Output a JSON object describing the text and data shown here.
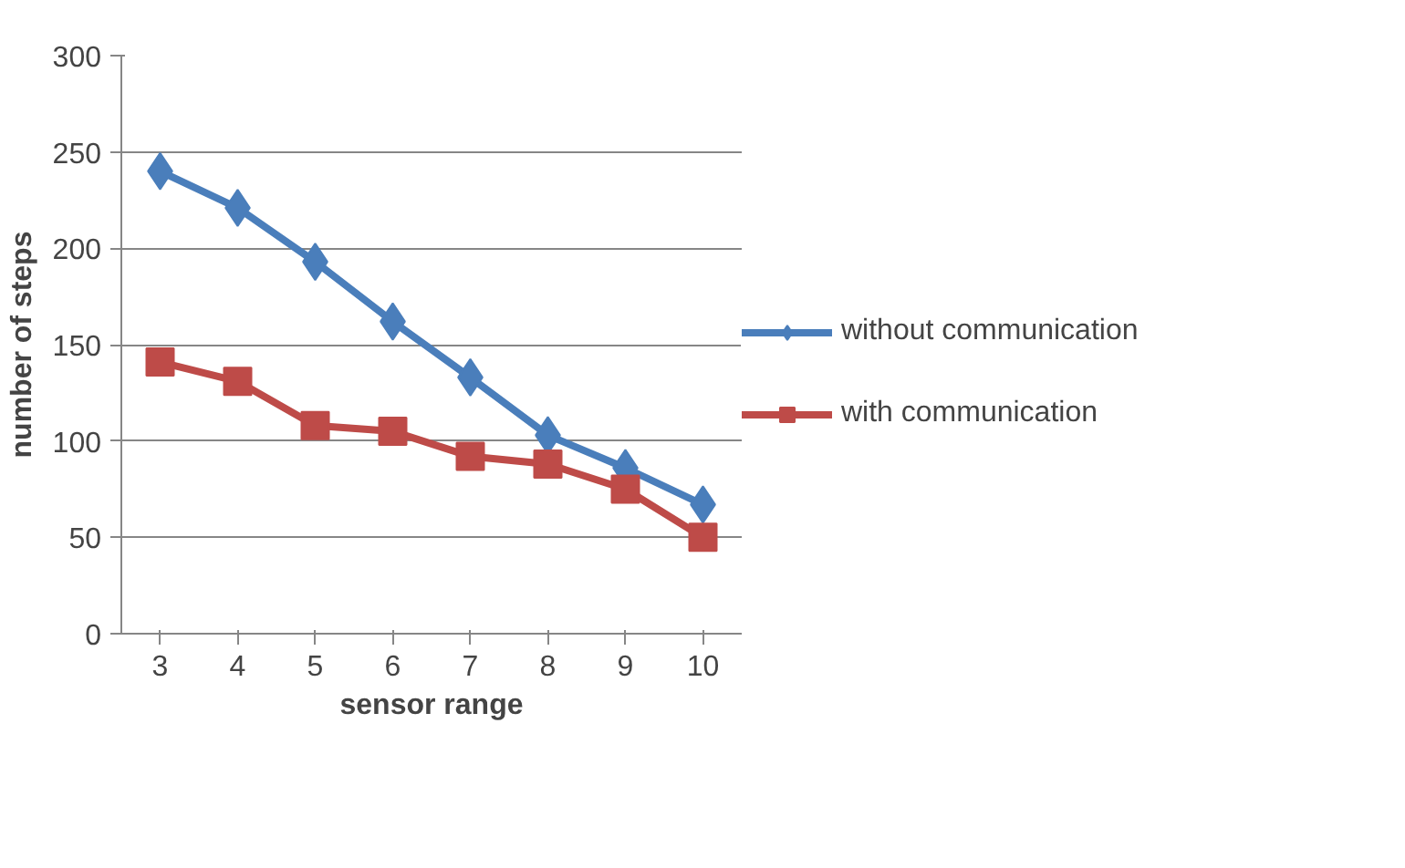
{
  "chart_data": {
    "type": "line",
    "xlabel": "sensor range",
    "ylabel": "number of steps",
    "categories": [
      "3",
      "4",
      "5",
      "6",
      "7",
      "8",
      "9",
      "10"
    ],
    "series": [
      {
        "name": "without communication",
        "color": "#4a7ebb",
        "marker": "diamond",
        "values": [
          240,
          221,
          193,
          162,
          133,
          103,
          86,
          67
        ]
      },
      {
        "name": "with communication",
        "color": "#be4b48",
        "marker": "square",
        "values": [
          141,
          131,
          108,
          105,
          92,
          88,
          75,
          50
        ]
      }
    ],
    "ylim": [
      0,
      300
    ],
    "yticks": [
      0,
      50,
      100,
      150,
      200,
      250,
      300
    ],
    "grid": "y",
    "legend": "right"
  }
}
